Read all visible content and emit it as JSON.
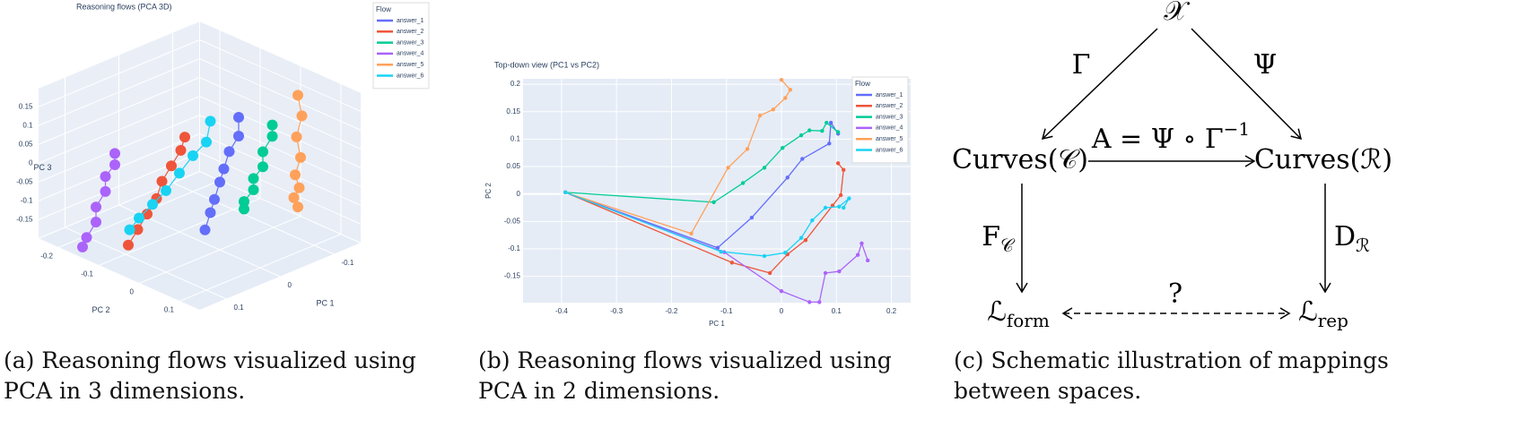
{
  "chart_data": [
    {
      "type": "scatter3d",
      "title": "Reasoning flows (PCA 3D)",
      "x_label": "PC 1",
      "y_label": "PC 2",
      "z_label": "PC 3",
      "xlim": [
        -0.15,
        0.15
      ],
      "ylim": [
        -0.25,
        0.15
      ],
      "zlim": [
        -0.2,
        0.2
      ],
      "xticks": [
        -0.1,
        0,
        0.1
      ],
      "yticks": [
        -0.2,
        -0.1,
        0,
        0.1
      ],
      "zticks": [
        -0.15,
        -0.1,
        -0.05,
        0,
        0.05,
        0.1,
        0.15
      ],
      "legend_title": "Flow",
      "legend": "top right",
      "series": [
        {
          "name": "answer_1",
          "color": "#636efa",
          "x": [
            -0.02,
            -0.02,
            -0.01,
            0,
            0,
            0.01,
            0.01,
            0.02
          ],
          "y": [
            0.02,
            0.02,
            0.01,
            0.01,
            0,
            0,
            -0.01,
            -0.01
          ],
          "z": [
            0.15,
            0.1,
            0.06,
            0.02,
            -0.02,
            -0.06,
            -0.1,
            -0.14
          ]
        },
        {
          "name": "answer_2",
          "color": "#EF553B",
          "x": [
            0.05,
            0.05,
            0.06,
            0.07,
            0.08,
            0.09,
            0.1,
            0.11
          ],
          "y": [
            -0.02,
            -0.03,
            -0.04,
            -0.05,
            -0.05,
            -0.06,
            -0.07,
            -0.08
          ],
          "z": [
            0.12,
            0.08,
            0.04,
            0,
            -0.04,
            -0.08,
            -0.12,
            -0.16
          ]
        },
        {
          "name": "answer_3",
          "color": "#00cc96",
          "x": [
            -0.06,
            -0.06,
            -0.05,
            -0.05,
            -0.04,
            -0.04,
            -0.03,
            -0.03
          ],
          "y": [
            0.05,
            0.05,
            0.04,
            0.04,
            0.03,
            0.03,
            0.02,
            0.02
          ],
          "z": [
            0.12,
            0.09,
            0.05,
            0.01,
            -0.02,
            -0.05,
            -0.08,
            -0.1
          ]
        },
        {
          "name": "answer_4",
          "color": "#ab63fa",
          "x": [
            0.12,
            0.12,
            0.13,
            0.13,
            0.14,
            0.14,
            0.15,
            0.15
          ],
          "y": [
            -0.1,
            -0.1,
            -0.11,
            -0.11,
            -0.12,
            -0.12,
            -0.13,
            -0.14
          ],
          "z": [
            0.08,
            0.05,
            0.02,
            -0.02,
            -0.06,
            -0.1,
            -0.14,
            -0.17
          ]
        },
        {
          "name": "answer_5",
          "color": "#FFA15A",
          "x": [
            -0.1,
            -0.1,
            -0.09,
            -0.09,
            -0.08,
            -0.08,
            -0.07,
            -0.07
          ],
          "y": [
            0.06,
            0.07,
            0.07,
            0.08,
            0.08,
            0.09,
            0.09,
            0.1
          ],
          "z": [
            0.18,
            0.13,
            0.08,
            0.03,
            -0.01,
            -0.04,
            -0.06,
            -0.08
          ]
        },
        {
          "name": "answer_6",
          "color": "#19d3f3",
          "x": [
            0.04,
            0.04,
            0.05,
            0.06,
            0.07,
            0.08,
            0.09,
            0.1
          ],
          "y": [
            0.03,
            0.02,
            0,
            -0.02,
            -0.04,
            -0.06,
            -0.08,
            -0.09
          ],
          "z": [
            0.18,
            0.12,
            0.08,
            0.03,
            -0.02,
            -0.06,
            -0.1,
            -0.13
          ]
        }
      ]
    },
    {
      "type": "line",
      "title": "Top-down view (PC1 vs PC2)",
      "x_label": "PC 1",
      "y_label": "PC 2",
      "xlim": [
        -0.47,
        0.235
      ],
      "ylim": [
        -0.198,
        0.21
      ],
      "xticks": [
        -0.4,
        -0.3,
        -0.2,
        -0.1,
        0,
        0.1,
        0.2
      ],
      "yticks": [
        -0.15,
        -0.1,
        -0.05,
        0,
        0.05,
        0.1,
        0.15,
        0.2
      ],
      "grid": true,
      "legend_title": "Flow",
      "legend": "top right",
      "series": [
        {
          "name": "answer_1",
          "color": "#636efa",
          "x": [
            -0.393,
            -0.116,
            -0.054,
            0.011,
            0.038,
            0.087,
            0.09,
            0.103
          ],
          "values": [
            0.003,
            -0.098,
            -0.043,
            0.03,
            0.064,
            0.092,
            0.13,
            0.11
          ]
        },
        {
          "name": "answer_2",
          "color": "#EF553B",
          "x": [
            -0.393,
            -0.09,
            -0.021,
            0.011,
            0.044,
            0.093,
            0.108,
            0.113,
            0.103
          ],
          "values": [
            0.003,
            -0.125,
            -0.144,
            -0.11,
            -0.084,
            -0.021,
            -0.002,
            0.044,
            0.056
          ]
        },
        {
          "name": "answer_3",
          "color": "#00cc96",
          "x": [
            -0.393,
            -0.123,
            -0.07,
            -0.031,
            0.002,
            0.036,
            0.051,
            0.074,
            0.082,
            0.103
          ],
          "values": [
            0.003,
            -0.015,
            0.02,
            0.048,
            0.084,
            0.107,
            0.116,
            0.115,
            0.13,
            0.113
          ]
        },
        {
          "name": "answer_4",
          "color": "#ab63fa",
          "x": [
            -0.393,
            -0.104,
            0,
            0.051,
            0.069,
            0.08,
            0.105,
            0.139,
            0.146,
            0.157
          ],
          "values": [
            0.003,
            -0.106,
            -0.177,
            -0.197,
            -0.197,
            -0.144,
            -0.141,
            -0.111,
            -0.09,
            -0.121
          ]
        },
        {
          "name": "answer_5",
          "color": "#FFA15A",
          "x": [
            -0.393,
            -0.164,
            -0.097,
            -0.062,
            -0.039,
            -0.015,
            0.007,
            0.016,
            0
          ],
          "values": [
            0.003,
            -0.072,
            0.048,
            0.082,
            0.143,
            0.154,
            0.175,
            0.19,
            0.208
          ]
        },
        {
          "name": "answer_6",
          "color": "#19d3f3",
          "x": [
            -0.393,
            -0.11,
            -0.031,
            0.007,
            0.036,
            0.056,
            0.08,
            0.105,
            0.123,
            0.113
          ],
          "values": [
            0.003,
            -0.105,
            -0.113,
            -0.107,
            -0.08,
            -0.048,
            -0.025,
            -0.023,
            -0.008,
            -0.025
          ]
        }
      ]
    }
  ],
  "diagram": {
    "nodes": [
      {
        "label": "𝒳"
      },
      {
        "label": "Curves(𝒞)"
      },
      {
        "label": "Curves(ℛ)"
      },
      {
        "label": {
          "text": "ℒ",
          "sub": "form"
        }
      },
      {
        "label": {
          "text": "ℒ",
          "sub": "rep"
        }
      }
    ],
    "edges": [
      {
        "label": "Γ"
      },
      {
        "label": "Ψ"
      },
      {
        "label": {
          "text": "A = Ψ ∘ Γ",
          "sup": "−1"
        }
      },
      {
        "label": {
          "text": "F",
          "sub": "𝒞"
        }
      },
      {
        "label": {
          "text": "D",
          "sub": "ℛ"
        }
      },
      {
        "label": "?"
      }
    ]
  },
  "captions": [
    "(a) Reasoning flows visualized using PCA in 3 dimensions.",
    "(b) Reasoning flows visualized using PCA in 2 dimensions.",
    "(c) Schematic illustration of mappings between spaces."
  ]
}
